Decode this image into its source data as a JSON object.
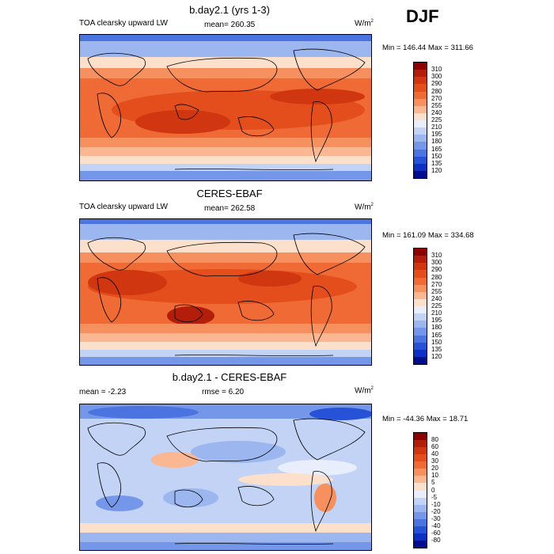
{
  "season": "DJF",
  "panels": [
    {
      "title": "b.day2.1 (yrs 1-3)",
      "variable": "TOA clearsky upward LW",
      "stat": "mean= 260.35",
      "units": "W/m",
      "units_sup": "2",
      "minmax": "Min = 146.44 Max = 311.66",
      "colorbar_labels": [
        "310",
        "300",
        "290",
        "280",
        "270",
        "255",
        "240",
        "225",
        "210",
        "195",
        "180",
        "165",
        "150",
        "135",
        "120"
      ],
      "colorbar_colors": [
        "#8b0000",
        "#b21e0a",
        "#d0360f",
        "#e34e1c",
        "#ef6a35",
        "#f6905e",
        "#fab792",
        "#fde0cc",
        "#e8eefb",
        "#c3d3f5",
        "#9cb6ef",
        "#7597e9",
        "#4c74e1",
        "#2552d6",
        "#0d2fc2",
        "#000e8e"
      ]
    },
    {
      "title": "CERES-EBAF",
      "variable": "TOA clearsky upward LW",
      "stat": "mean= 262.58",
      "units": "W/m",
      "units_sup": "2",
      "minmax": "Min = 161.09 Max = 334.68",
      "colorbar_labels": [
        "310",
        "300",
        "290",
        "280",
        "270",
        "255",
        "240",
        "225",
        "210",
        "195",
        "180",
        "165",
        "150",
        "135",
        "120"
      ],
      "colorbar_colors": [
        "#8b0000",
        "#b21e0a",
        "#d0360f",
        "#e34e1c",
        "#ef6a35",
        "#f6905e",
        "#fab792",
        "#fde0cc",
        "#e8eefb",
        "#c3d3f5",
        "#9cb6ef",
        "#7597e9",
        "#4c74e1",
        "#2552d6",
        "#0d2fc2",
        "#000e8e"
      ]
    },
    {
      "title": "b.day2.1 - CERES-EBAF",
      "variable": "mean =  -2.23",
      "stat": "rmse =   6.20",
      "units": "W/m",
      "units_sup": "2",
      "minmax": "Min = -44.36 Max =  18.71",
      "colorbar_labels": [
        "80",
        "60",
        "40",
        "30",
        "20",
        "10",
        "5",
        "0",
        "-5",
        "-10",
        "-20",
        "-30",
        "-40",
        "-60",
        "-80"
      ],
      "colorbar_colors": [
        "#8b0000",
        "#b21e0a",
        "#d0360f",
        "#e34e1c",
        "#ef6a35",
        "#f6905e",
        "#fab792",
        "#fde0cc",
        "#e8eefb",
        "#c3d3f5",
        "#9cb6ef",
        "#7597e9",
        "#4c74e1",
        "#2552d6",
        "#0d2fc2",
        "#000e8e"
      ]
    }
  ]
}
